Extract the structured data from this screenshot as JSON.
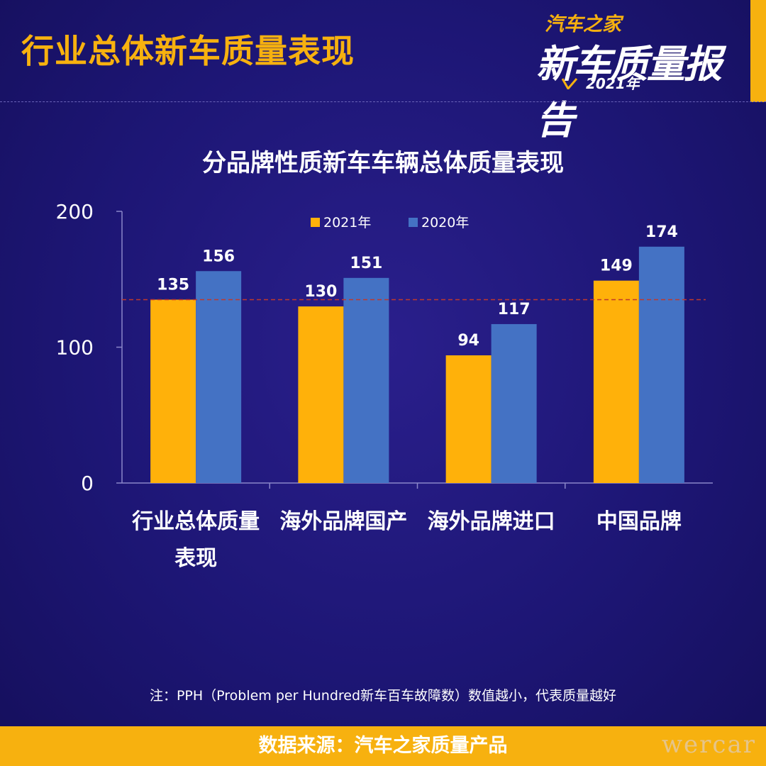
{
  "header": {
    "title": "行业总体新车质量表现"
  },
  "logo": {
    "top": "汽车之家",
    "main": "新车质量报告",
    "year": "2021年"
  },
  "chart_data": {
    "type": "bar",
    "title": "分品牌性质新车车辆总体质量表现",
    "categories": [
      "行业总体质量表现",
      "海外品牌国产",
      "海外品牌进口",
      "中国品牌"
    ],
    "category_lines": [
      [
        "行业总体质量",
        "表现"
      ],
      [
        "海外品牌国产"
      ],
      [
        "海外品牌进口"
      ],
      [
        "中国品牌"
      ]
    ],
    "series": [
      {
        "name": "2021年",
        "values": [
          135,
          130,
          94,
          149
        ],
        "color": "#ffb10a"
      },
      {
        "name": "2020年",
        "values": [
          156,
          151,
          117,
          174
        ],
        "color": "#4472c4"
      }
    ],
    "ylim": [
      0,
      200
    ],
    "yticks": [
      "0",
      "100",
      "200"
    ],
    "reference_line": {
      "value": 135,
      "color": "#c0392b"
    },
    "legend": "top-center",
    "grid": false
  },
  "note": "注：PPH（Problem per Hundred新车百车故障数）数值越小，代表质量越好",
  "footer": {
    "source": "数据来源：汽车之家质量产品"
  },
  "watermark": "wercar"
}
